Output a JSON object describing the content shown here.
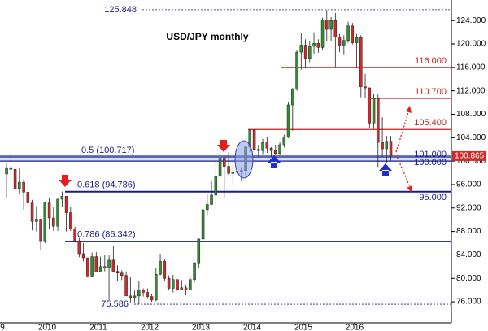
{
  "chart_data": {
    "type": "candlestick",
    "title": "USD/JPY monthly",
    "up_color": "#2f8f2f",
    "down_color": "#d02a2a",
    "xlim": [
      2009.08,
      2017.89
    ],
    "xticks": [
      {
        "value": 2009,
        "label": "9"
      },
      2010,
      2011,
      2012,
      2013,
      2014,
      2015,
      2016
    ],
    "ylim": [
      72.4,
      127.5
    ],
    "yticks": [
      {
        "value": 76,
        "label": "76.000"
      },
      {
        "value": 80,
        "label": "80.000"
      },
      {
        "value": 84,
        "label": "84.000"
      },
      {
        "value": 88,
        "label": "88.000"
      },
      {
        "value": 92,
        "label": "92.000"
      },
      {
        "value": 96,
        "label": "96.000"
      },
      {
        "value": 100,
        "label": "100.000"
      },
      {
        "value": 104,
        "label": "104.000"
      },
      {
        "value": 108,
        "label": "108.000"
      },
      {
        "value": 112,
        "label": "112.000"
      },
      {
        "value": 116,
        "label": "116.000"
      },
      {
        "value": 120,
        "label": "120.000"
      },
      {
        "value": 124,
        "label": "124.000"
      }
    ],
    "x": [
      2009.208,
      2009.292,
      2009.375,
      2009.458,
      2009.542,
      2009.625,
      2009.708,
      2009.792,
      2009.875,
      2009.958,
      2010.042,
      2010.125,
      2010.208,
      2010.292,
      2010.375,
      2010.458,
      2010.542,
      2010.625,
      2010.708,
      2010.792,
      2010.875,
      2010.958,
      2011.042,
      2011.125,
      2011.208,
      2011.292,
      2011.375,
      2011.458,
      2011.542,
      2011.625,
      2011.708,
      2011.792,
      2011.875,
      2011.958,
      2012.042,
      2012.125,
      2012.208,
      2012.292,
      2012.375,
      2012.458,
      2012.542,
      2012.625,
      2012.708,
      2012.792,
      2012.875,
      2012.958,
      2013.042,
      2013.125,
      2013.208,
      2013.292,
      2013.375,
      2013.458,
      2013.542,
      2013.625,
      2013.708,
      2013.792,
      2013.875,
      2013.958,
      2014.042,
      2014.125,
      2014.208,
      2014.292,
      2014.375,
      2014.458,
      2014.542,
      2014.625,
      2014.708,
      2014.792,
      2014.875,
      2014.958,
      2015.042,
      2015.125,
      2015.208,
      2015.292,
      2015.375,
      2015.458,
      2015.542,
      2015.625,
      2015.708,
      2015.792,
      2015.875,
      2015.958,
      2016.042,
      2016.125,
      2016.208,
      2016.292,
      2016.375,
      2016.458,
      2016.542,
      2016.625,
      2016.708
    ],
    "open": [
      97.8,
      98.9,
      98.6,
      95.3,
      96.4,
      94.7,
      93.0,
      89.7,
      90.1,
      86.4,
      93.0,
      90.3,
      88.9,
      93.5,
      94.0,
      91.2,
      88.4,
      86.4,
      84.2,
      83.5,
      80.4,
      83.7,
      81.1,
      82.0,
      81.8,
      83.1,
      81.2,
      80.9,
      80.5,
      77.0,
      76.7,
      77.0,
      78.0,
      77.6,
      76.9,
      76.3,
      80.7,
      82.9,
      80.0,
      78.3,
      79.8,
      78.1,
      78.4,
      78.0,
      79.8,
      82.5,
      86.7,
      91.7,
      92.6,
      94.2,
      97.4,
      100.5,
      99.1,
      97.9,
      98.1,
      98.3,
      98.4,
      102.4,
      105.3,
      102.0,
      101.8,
      103.2,
      102.2,
      101.8,
      101.3,
      102.8,
      104.1,
      109.6,
      112.3,
      118.6,
      119.8,
      117.5,
      119.6,
      120.1,
      119.4,
      124.1,
      122.5,
      124.0,
      121.2,
      119.8,
      120.6,
      123.1,
      120.2,
      121.1,
      112.7,
      112.5,
      106.5,
      110.7,
      103.2,
      102.1,
      103.4
    ],
    "high": [
      99.7,
      101.4,
      99.5,
      98.9,
      96.9,
      97.8,
      93.4,
      92.3,
      90.2,
      93.1,
      93.8,
      92.1,
      93.6,
      94.8,
      94.0,
      92.2,
      88.8,
      86.9,
      86.0,
      83.5,
      84.4,
      84.5,
      83.7,
      84.0,
      83.9,
      85.5,
      82.2,
      81.4,
      81.2,
      80.2,
      77.9,
      79.5,
      78.3,
      78.3,
      77.3,
      81.7,
      84.2,
      83.3,
      80.5,
      80.6,
      79.8,
      79.7,
      78.8,
      80.4,
      82.8,
      86.8,
      91.8,
      94.4,
      96.7,
      99.9,
      103.7,
      100.9,
      101.5,
      99.2,
      100.6,
      99.0,
      102.6,
      105.4,
      105.4,
      102.8,
      103.8,
      104.1,
      102.4,
      102.8,
      103.2,
      104.5,
      110.1,
      112.5,
      118.9,
      121.8,
      120.8,
      120.5,
      122.0,
      120.8,
      124.5,
      125.848,
      124.6,
      125.3,
      121.7,
      121.5,
      123.8,
      123.6,
      121.7,
      121.5,
      114.9,
      112.6,
      111.4,
      111.4,
      107.5,
      104.3,
      104.3
    ],
    "low": [
      93.8,
      97.0,
      94.4,
      94.5,
      91.7,
      91.8,
      88.2,
      88.0,
      84.8,
      86.0,
      88.5,
      88.1,
      88.1,
      92.2,
      88.0,
      88.1,
      86.1,
      83.6,
      82.9,
      80.2,
      80.2,
      81.1,
      81.0,
      81.2,
      76.3,
      81.3,
      79.6,
      79.7,
      77.2,
      75.9,
      75.9,
      75.586,
      76.9,
      76.5,
      76.0,
      76.1,
      80.5,
      79.6,
      78.0,
      77.6,
      77.9,
      78.1,
      77.1,
      77.9,
      79.3,
      81.7,
      86.6,
      90.8,
      92.5,
      92.6,
      97.1,
      93.8,
      97.6,
      95.8,
      96.9,
      96.6,
      97.6,
      101.6,
      101.8,
      100.8,
      101.2,
      101.4,
      100.8,
      101.1,
      101.1,
      102.3,
      103.9,
      105.2,
      112.0,
      115.6,
      115.9,
      116.9,
      118.3,
      118.5,
      118.9,
      120.4,
      120.4,
      116.1,
      118.6,
      118.1,
      120.2,
      119.9,
      115.9,
      110.9,
      110.7,
      105.6,
      105.5,
      99.0,
      100.7,
      99.6,
      100.1
    ],
    "close": [
      98.9,
      98.6,
      95.3,
      96.4,
      94.7,
      93.0,
      89.7,
      90.1,
      86.4,
      93.0,
      90.3,
      88.9,
      93.5,
      94.0,
      91.2,
      88.4,
      86.4,
      84.2,
      83.5,
      80.4,
      83.7,
      81.1,
      82.0,
      81.8,
      83.1,
      81.2,
      80.9,
      80.5,
      77.0,
      76.7,
      77.0,
      78.0,
      77.6,
      76.9,
      76.3,
      80.7,
      82.9,
      80.0,
      78.3,
      79.8,
      78.1,
      78.4,
      78.0,
      79.8,
      82.5,
      86.7,
      91.7,
      92.6,
      94.2,
      97.4,
      100.5,
      99.1,
      97.9,
      98.1,
      98.3,
      98.4,
      102.4,
      105.3,
      102.0,
      101.8,
      103.2,
      102.2,
      101.8,
      101.3,
      102.8,
      104.1,
      109.6,
      112.3,
      118.6,
      119.8,
      117.5,
      119.6,
      120.1,
      119.4,
      124.1,
      122.5,
      124.0,
      121.2,
      119.8,
      120.6,
      123.1,
      120.2,
      121.1,
      112.7,
      112.5,
      106.5,
      110.7,
      103.2,
      102.1,
      103.4,
      100.865
    ],
    "levels": [
      {
        "value": 125.848,
        "label": "125.848",
        "color": "#1a1a8c"
      },
      {
        "value": 116,
        "label": "116.000",
        "color": "#c8201e"
      },
      {
        "value": 110.7,
        "label": "110.700",
        "color": "#c8201e"
      },
      {
        "value": 105.4,
        "label": "105.400",
        "color": "#c8201e"
      },
      {
        "value": 101,
        "label": "101.000",
        "color": "#1a1a8c"
      },
      {
        "value": 100.717,
        "label": "0.5 (100.717)",
        "color": "#1a1a8c"
      },
      {
        "value": 100,
        "label": "100.000",
        "color": "#1a1a8c"
      },
      {
        "value": 94.786,
        "label": "0.618 (94.786)",
        "color": "#1a1a8c"
      },
      {
        "value": 95,
        "label": "95.000",
        "color": "#1a1a8c"
      },
      {
        "value": 86.342,
        "label": "0.786 (86.342)",
        "color": "#1a1a8c"
      },
      {
        "value": 75.586,
        "label": "75.586",
        "color": "#1a1a8c"
      }
    ],
    "last_price": {
      "value": 100.865,
      "label": "100.865",
      "color": "#d02a2a"
    }
  }
}
